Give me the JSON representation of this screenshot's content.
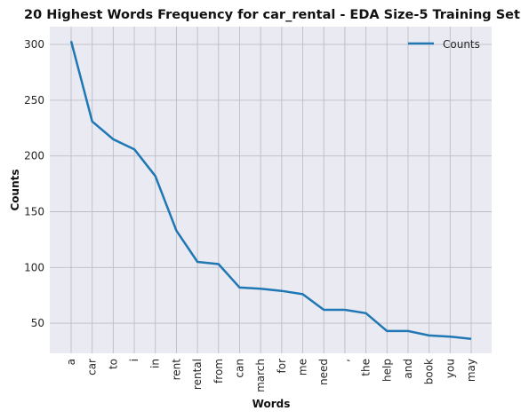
{
  "chart_data": {
    "type": "line",
    "title": "20 Highest Words Frequency for car_rental - EDA Size-5 Training Set",
    "xlabel": "Words",
    "ylabel": "Counts",
    "categories": [
      "a",
      "car",
      "to",
      "i",
      "in",
      "rent",
      "rental",
      "from",
      "can",
      "march",
      "for",
      "me",
      "need",
      ",",
      "the",
      "help",
      "and",
      "book",
      "you",
      "may"
    ],
    "series": [
      {
        "name": "Counts",
        "values": [
          303,
          231,
          215,
          206,
          182,
          133,
          105,
          103,
          82,
          81,
          79,
          76,
          62,
          62,
          59,
          43,
          43,
          39,
          38,
          36
        ],
        "color": "#1f77b4"
      }
    ],
    "ylim": [
      23,
      316
    ],
    "yticks": [
      50,
      100,
      150,
      200,
      250,
      300
    ],
    "grid": true,
    "legend": "top-right",
    "background": "#eaeaf2",
    "grid_color": "#bdbdc6"
  }
}
